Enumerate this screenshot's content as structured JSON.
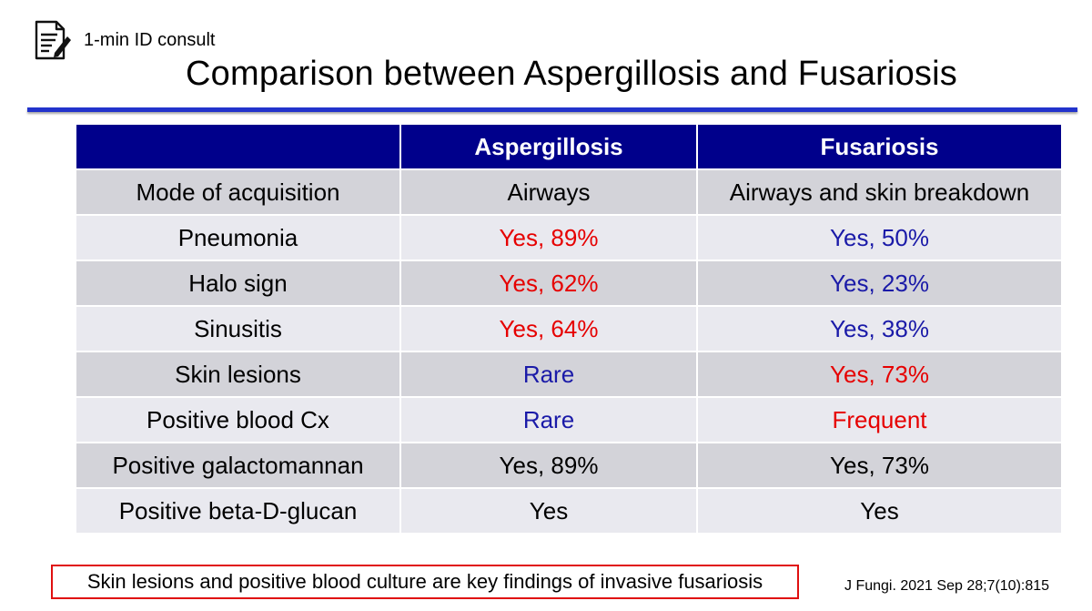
{
  "header": {
    "brand": "1-min ID consult",
    "icon": "document-edit-icon",
    "title": "Comparison between Aspergillosis and Fusariosis"
  },
  "table": {
    "headers": [
      "",
      "Aspergillosis",
      "Fusariosis"
    ],
    "header_bg": "#00008b",
    "rows": [
      {
        "label": "Mode of acquisition",
        "asp": "Airways",
        "asp_color": "black",
        "fus": "Airways and skin breakdown",
        "fus_color": "black"
      },
      {
        "label": "Pneumonia",
        "asp": "Yes, 89%",
        "asp_color": "red",
        "fus": "Yes, 50%",
        "fus_color": "blue"
      },
      {
        "label": "Halo sign",
        "asp": "Yes, 62%",
        "asp_color": "red",
        "fus": "Yes, 23%",
        "fus_color": "blue"
      },
      {
        "label": "Sinusitis",
        "asp": "Yes, 64%",
        "asp_color": "red",
        "fus": "Yes, 38%",
        "fus_color": "blue"
      },
      {
        "label": "Skin lesions",
        "asp": "Rare",
        "asp_color": "blue",
        "fus": "Yes, 73%",
        "fus_color": "red"
      },
      {
        "label": "Positive blood Cx",
        "asp": "Rare",
        "asp_color": "blue",
        "fus": "Frequent",
        "fus_color": "red"
      },
      {
        "label": "Positive galactomannan",
        "asp": "Yes, 89%",
        "asp_color": "black",
        "fus": "Yes, 73%",
        "fus_color": "black"
      },
      {
        "label": "Positive beta-D-glucan",
        "asp": "Yes",
        "asp_color": "black",
        "fus": "Yes",
        "fus_color": "black"
      }
    ]
  },
  "footer": {
    "key_finding": "Skin lesions and positive blood culture are key findings of invasive fusariosis",
    "citation": "J Fungi. 2021 Sep 28;7(10):815"
  },
  "colors": {
    "accent_rule": "#2233cc",
    "red": "#e60000",
    "blue": "#1a1aa8",
    "row_odd": "#d3d3d9",
    "row_even": "#e9e9ef",
    "box_border": "#e01010"
  }
}
